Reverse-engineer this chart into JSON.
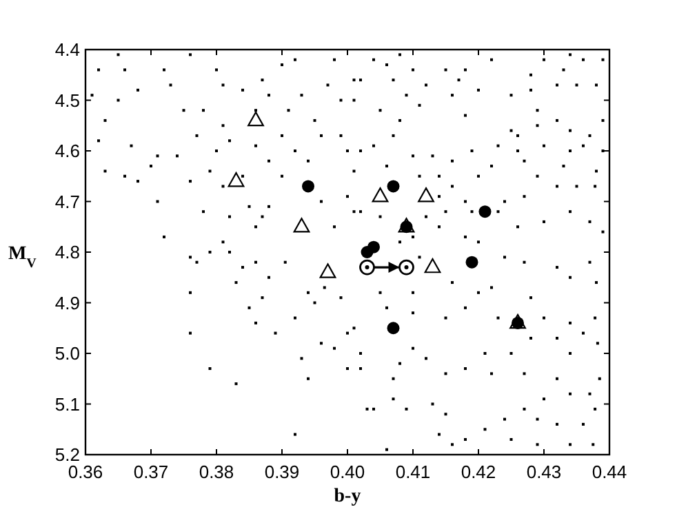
{
  "chart_data": {
    "type": "scatter",
    "xlabel": "b-y",
    "ylabel": "M$_{V}$",
    "xlim": [
      0.36,
      0.44
    ],
    "xticks": [
      0.36,
      0.37,
      0.38,
      0.39,
      {
        "value": 0.4,
        "label": "0.40"
      },
      0.41,
      0.42,
      0.43,
      0.44
    ],
    "ylim": [
      5.2,
      4.4
    ],
    "yticks": [
      4.4,
      4.5,
      4.6,
      4.7,
      4.8,
      4.9,
      {
        "value": 5,
        "label": "5.0"
      },
      5.1,
      5.2
    ],
    "grid": false,
    "series": [
      {
        "marker": "square",
        "color": "#000000",
        "x": [
          0.372,
          0.376,
          0.377,
          0.376,
          0.376,
          0.379,
          0.383,
          0.379,
          0.381,
          0.382,
          0.384,
          0.386,
          0.383,
          0.385,
          0.386,
          0.387,
          0.388,
          0.389,
          0.392,
          0.393,
          0.394,
          0.392,
          0.396,
          0.395,
          0.394,
          0.399,
          0.398,
          0.4,
          0.4,
          0.401,
          0.402,
          0.403,
          0.3965,
          0.3905,
          0.365,
          0.362,
          0.366,
          0.368,
          0.365,
          0.361,
          0.363,
          0.362,
          0.367,
          0.371,
          0.37,
          0.363,
          0.366,
          0.368,
          0.371,
          0.374,
          0.376,
          0.377,
          0.378,
          0.375,
          0.373,
          0.372,
          0.376,
          0.38,
          0.381,
          0.381,
          0.382,
          0.38,
          0.379,
          0.378,
          0.381,
          0.384,
          0.385,
          0.387,
          0.388,
          0.386,
          0.382,
          0.39,
          0.388,
          0.386,
          0.39,
          0.392,
          0.386,
          0.384,
          0.387,
          0.39,
          0.392,
          0.388,
          0.393,
          0.391,
          0.395,
          0.396,
          0.394,
          0.399,
          0.4,
          0.401,
          0.4,
          0.401,
          0.398,
          0.397,
          0.401,
          0.399,
          0.396,
          0.398,
          0.404,
          0.406,
          0.402,
          0.407,
          0.41,
          0.408,
          0.415,
          0.422,
          0.418,
          0.42,
          0.417,
          0.412,
          0.409,
          0.405,
          0.401,
          0.408,
          0.411,
          0.416,
          0.418,
          0.425,
          0.428,
          0.43,
          0.434,
          0.436,
          0.439,
          0.438,
          0.433,
          0.428,
          0.432,
          0.435,
          0.429,
          0.432,
          0.439,
          0.437,
          0.434,
          0.429,
          0.425,
          0.426,
          0.423,
          0.426,
          0.43,
          0.434,
          0.436,
          0.439,
          0.438,
          0.433,
          0.429,
          0.427,
          0.422,
          0.419,
          0.42,
          0.416,
          0.413,
          0.41,
          0.407,
          0.404,
          0.402,
          0.406,
          0.411,
          0.414,
          0.416,
          0.414,
          0.418,
          0.424,
          0.427,
          0.432,
          0.435,
          0.4378,
          0.434,
          0.437,
          0.439,
          0.43,
          0.426,
          0.423,
          0.419,
          0.415,
          0.412,
          0.414,
          0.418,
          0.42,
          0.408,
          0.405,
          0.402,
          0.41,
          0.411,
          0.424,
          0.427,
          0.432,
          0.437,
          0.438,
          0.434,
          0.428,
          0.422,
          0.42,
          0.416,
          0.41,
          0.405,
          0.406,
          0.41,
          0.415,
          0.418,
          0.423,
          0.43,
          0.434,
          0.4378,
          0.436,
          0.432,
          0.428,
          0.425,
          0.421,
          0.418,
          0.415,
          0.412,
          0.41,
          0.408,
          0.407,
          0.407,
          0.404,
          0.409,
          0.413,
          0.415,
          0.414,
          0.418,
          0.421,
          0.424,
          0.427,
          0.429,
          0.432,
          0.43,
          0.434,
          0.437,
          0.4378,
          0.436,
          0.4375,
          0.434,
          0.429,
          0.425,
          0.406,
          0.416,
          0.432,
          0.427,
          0.422,
          0.434,
          0.4382,
          0.4385,
          0.402
        ],
        "values": [
          4.77,
          4.81,
          4.82,
          4.88,
          4.96,
          5.03,
          5.06,
          4.8,
          4.78,
          4.8,
          4.83,
          4.82,
          4.86,
          4.91,
          4.94,
          4.89,
          4.85,
          4.96,
          4.93,
          5.01,
          5.05,
          5.16,
          4.98,
          4.9,
          4.88,
          4.89,
          4.99,
          4.96,
          5.03,
          4.95,
          5.0,
          5.11,
          4.87,
          4.82,
          4.41,
          4.44,
          4.44,
          4.48,
          4.5,
          4.49,
          4.54,
          4.58,
          4.59,
          4.61,
          4.63,
          4.64,
          4.65,
          4.66,
          4.7,
          4.61,
          4.66,
          4.57,
          4.52,
          4.52,
          4.47,
          4.44,
          4.41,
          4.44,
          4.47,
          4.55,
          4.58,
          4.6,
          4.64,
          4.72,
          4.67,
          4.65,
          4.71,
          4.73,
          4.71,
          4.75,
          4.73,
          4.65,
          4.62,
          4.59,
          4.57,
          4.6,
          4.52,
          4.48,
          4.46,
          4.43,
          4.42,
          4.49,
          4.49,
          4.52,
          4.54,
          4.57,
          4.62,
          4.57,
          4.6,
          4.64,
          4.69,
          4.72,
          4.42,
          4.47,
          4.46,
          4.5,
          4.7,
          4.75,
          4.42,
          4.43,
          4.46,
          4.46,
          4.44,
          4.41,
          4.44,
          4.42,
          4.44,
          4.48,
          4.46,
          4.47,
          4.49,
          4.52,
          4.5,
          4.54,
          4.51,
          4.49,
          4.53,
          4.49,
          4.45,
          4.42,
          4.41,
          4.42,
          4.42,
          4.47,
          4.44,
          4.48,
          4.47,
          4.47,
          4.52,
          4.54,
          4.54,
          4.57,
          4.56,
          4.55,
          4.56,
          4.57,
          4.59,
          4.6,
          4.59,
          4.6,
          4.59,
          4.6,
          4.64,
          4.63,
          4.65,
          4.62,
          4.63,
          4.6,
          4.65,
          4.62,
          4.61,
          4.61,
          4.57,
          4.59,
          4.6,
          4.63,
          4.65,
          4.65,
          4.67,
          4.69,
          4.7,
          4.7,
          4.69,
          4.67,
          4.67,
          4.67,
          4.72,
          4.74,
          4.76,
          4.74,
          4.75,
          4.72,
          4.72,
          4.72,
          4.73,
          4.75,
          4.77,
          4.78,
          4.78,
          4.73,
          4.72,
          4.77,
          4.81,
          4.81,
          4.82,
          4.83,
          4.82,
          4.86,
          4.85,
          4.89,
          4.87,
          4.88,
          4.86,
          4.88,
          4.88,
          4.91,
          4.92,
          4.93,
          4.91,
          4.93,
          4.93,
          4.94,
          4.93,
          4.96,
          4.97,
          4.97,
          5.0,
          5.0,
          5.03,
          5.04,
          5.01,
          4.99,
          5.02,
          5.05,
          5.09,
          5.11,
          5.11,
          5.1,
          5.12,
          5.16,
          5.17,
          5.15,
          5.13,
          5.11,
          5.13,
          5.14,
          5.09,
          5.08,
          5.08,
          5.11,
          5.14,
          5.18,
          5.18,
          5.18,
          5.17,
          5.19,
          5.18,
          5.05,
          5.04,
          5.04,
          5.0,
          4.98,
          5.05,
          5.03
        ]
      },
      {
        "marker": "triangle",
        "color": "#000000",
        "x": [
          0.386,
          0.383,
          0.393,
          0.405,
          0.412,
          0.397,
          0.413,
          0.409,
          0.426
        ],
        "values": [
          4.54,
          4.66,
          4.75,
          4.69,
          4.69,
          4.84,
          4.83,
          4.75,
          4.94
        ]
      },
      {
        "marker": "circle",
        "color": "#000000",
        "x": [
          0.394,
          0.407,
          0.421,
          0.409,
          0.404,
          0.403,
          0.419,
          0.407,
          0.426
        ],
        "values": [
          4.67,
          4.67,
          4.72,
          4.75,
          4.79,
          4.8,
          4.82,
          4.95,
          4.94
        ]
      },
      {
        "type": "line",
        "marker": "circle",
        "line_style": "solid",
        "color": "#000000",
        "x": [
          0.403,
          0.409
        ],
        "values": [
          4.83,
          4.83
        ]
      }
    ]
  }
}
